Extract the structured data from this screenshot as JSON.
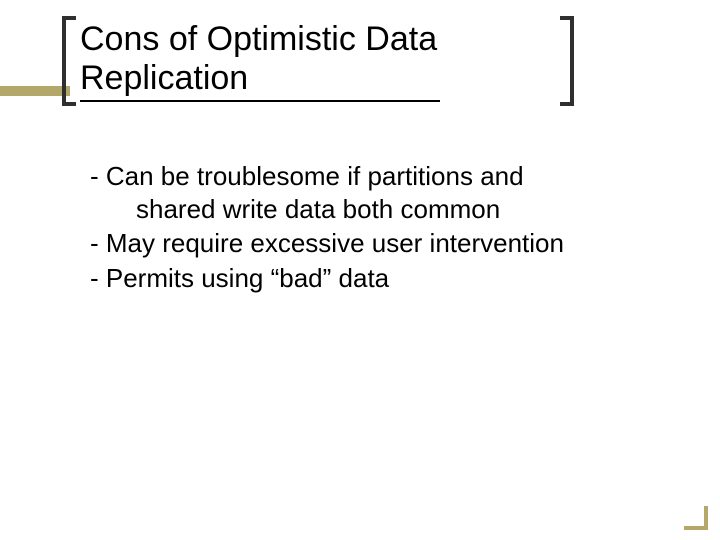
{
  "slide": {
    "title": "Cons of Optimistic Data Replication",
    "title_fontsize": 34,
    "title_color": "#000000",
    "underline_color": "#000000",
    "bracket_color": "#2f2f2f",
    "accent_color": "#b3a76a",
    "background_color": "#ffffff",
    "body_fontsize": 26,
    "body_color": "#000000",
    "items": [
      {
        "line1": "- Can be troublesome if partitions and",
        "line2": "shared write data both common"
      },
      {
        "line1": "- May require excessive user intervention",
        "line2": ""
      },
      {
        "line1": "- Permits using “bad” data",
        "line2": ""
      }
    ]
  }
}
